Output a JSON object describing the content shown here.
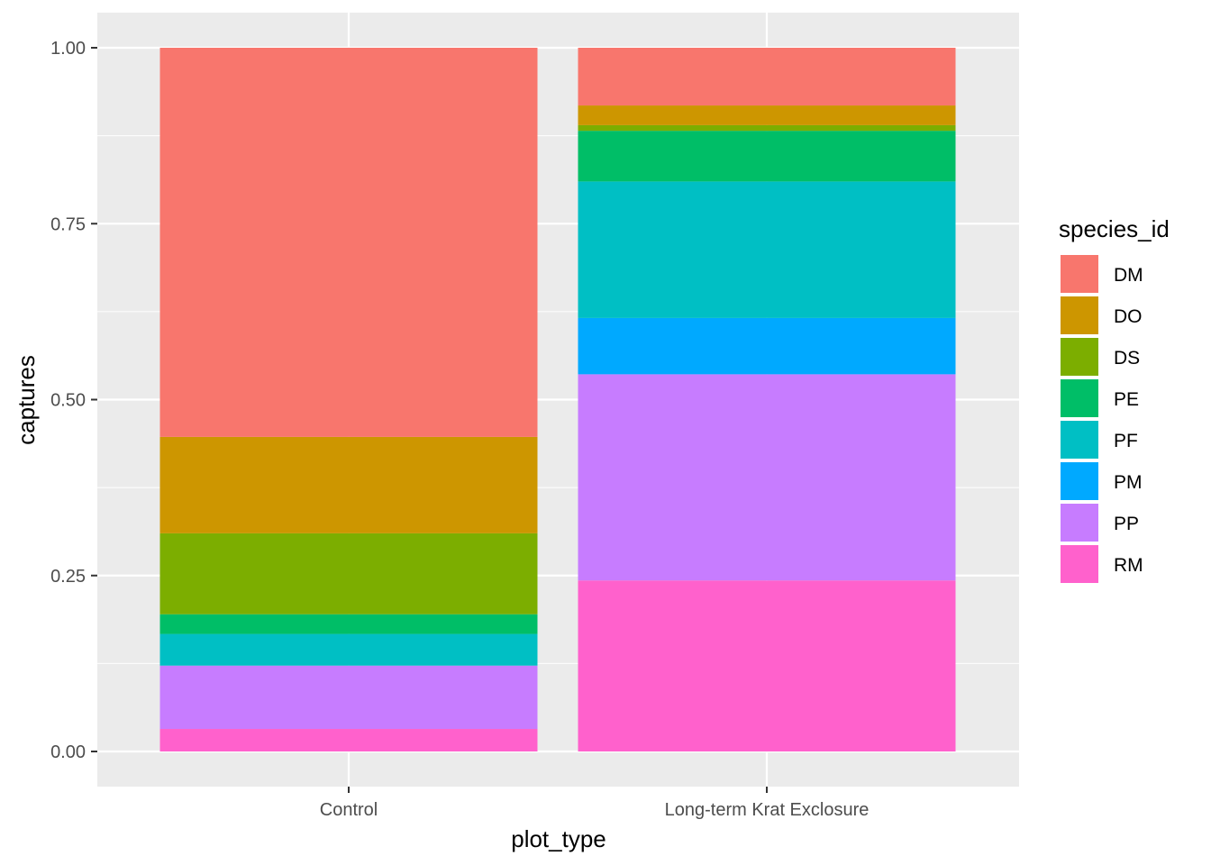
{
  "chart_data": {
    "type": "bar",
    "stacked": true,
    "position": "fill",
    "xlabel": "plot_type",
    "ylabel": "captures",
    "ylim": [
      0,
      1
    ],
    "yticks": [
      0.0,
      0.25,
      0.5,
      0.75,
      1.0
    ],
    "ytick_labels": [
      "0.00",
      "0.25",
      "0.50",
      "0.75",
      "1.00"
    ],
    "categories": [
      "Control",
      "Long-term Krat Exclosure"
    ],
    "legend": {
      "title": "species_id",
      "placement": "right"
    },
    "series": [
      {
        "name": "DM",
        "color": "#F8766D",
        "values": [
          0.553,
          0.082
        ]
      },
      {
        "name": "DO",
        "color": "#CD9600",
        "values": [
          0.137,
          0.028
        ]
      },
      {
        "name": "DS",
        "color": "#7CAE00",
        "values": [
          0.115,
          0.008
        ]
      },
      {
        "name": "PE",
        "color": "#00BE67",
        "values": [
          0.028,
          0.072
        ]
      },
      {
        "name": "PF",
        "color": "#00BFC4",
        "values": [
          0.045,
          0.194
        ]
      },
      {
        "name": "PM",
        "color": "#00A9FF",
        "values": [
          0.0,
          0.08
        ]
      },
      {
        "name": "PP",
        "color": "#C77CFF",
        "values": [
          0.09,
          0.293
        ]
      },
      {
        "name": "RM",
        "color": "#FF61CC",
        "values": [
          0.032,
          0.243
        ]
      }
    ],
    "grid": true,
    "panel_background": "#EBEBEB"
  }
}
